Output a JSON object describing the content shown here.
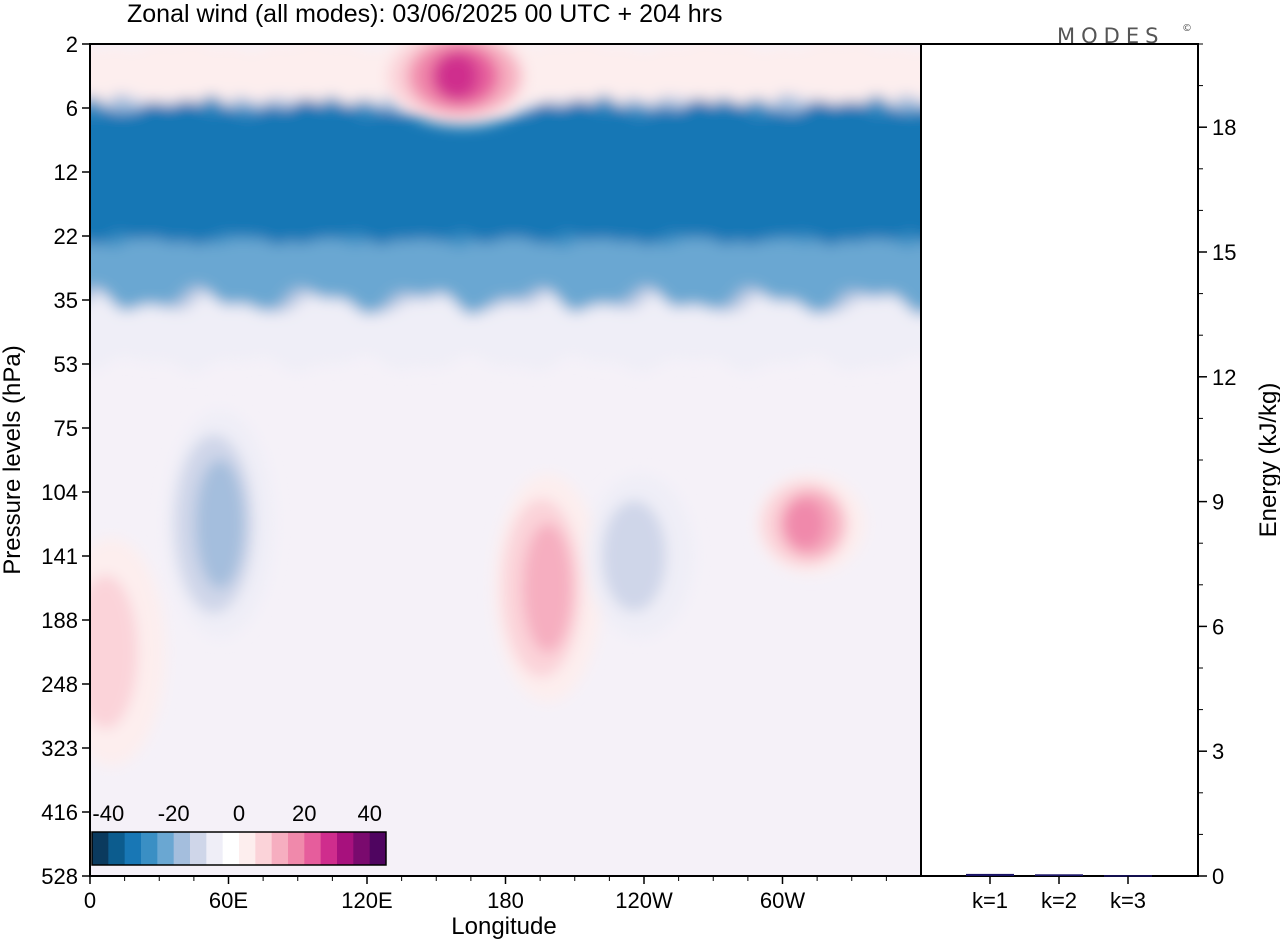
{
  "title": "Zonal wind (all modes):  03/06/2025  00 UTC  + 204 hrs",
  "brand": "MODES",
  "brand_mark": "©",
  "chart_data": [
    {
      "type": "heatmap",
      "title": "Zonal wind (all modes):  03/06/2025  00 UTC  + 204 hrs",
      "xlabel": "Longitude",
      "ylabel": "Pressure levels (hPa)",
      "x_ticks": [
        "0",
        "60E",
        "120E",
        "180",
        "120W",
        "60W"
      ],
      "x_tick_values": [
        0,
        60,
        120,
        180,
        240,
        300
      ],
      "xlim": [
        0,
        360
      ],
      "y_ticks": [
        "2",
        "6",
        "12",
        "22",
        "35",
        "53",
        "75",
        "104",
        "141",
        "188",
        "248",
        "323",
        "416",
        "528"
      ],
      "y_scale": "categorical pressure levels, top to bottom",
      "colorbar": {
        "tick_labels": [
          "-40",
          "-20",
          "0",
          "20",
          "40"
        ],
        "tick_values": [
          -40,
          -20,
          0,
          20,
          40
        ],
        "step": 5,
        "colors": [
          "#0b3a5e",
          "#0c5c8e",
          "#1877b5",
          "#3a8fc4",
          "#6aa7d2",
          "#a4bedd",
          "#cfd6e9",
          "#efeef7",
          "#ffffff",
          "#fdeeee",
          "#fbd3d9",
          "#f6aec0",
          "#f089ab",
          "#e65d9c",
          "#cf2d8d",
          "#a7117d",
          "#7a0a6e",
          "#4f0560"
        ],
        "location": "bottom-left inside plot"
      },
      "features": [
        {
          "level_band": "6-35",
          "sign": "negative",
          "peak": -35,
          "note": "strong easterly band across all longitudes"
        },
        {
          "level_band": "2-6",
          "lon": 160,
          "sign": "positive",
          "peak": 30
        },
        {
          "level_band": "75-188",
          "lon": 55,
          "sign": "negative",
          "peak": -15
        },
        {
          "level_band": "104-248",
          "lon": 197,
          "sign": "positive",
          "peak": 15
        },
        {
          "level_band": "104-188",
          "lon": 237,
          "sign": "negative",
          "peak": -10
        },
        {
          "level_band": "104-141",
          "lon": 311,
          "sign": "positive",
          "peak": 20
        },
        {
          "level_band": "141-323",
          "lon": 8,
          "sign": "positive",
          "peak": 12
        }
      ]
    },
    {
      "type": "bar",
      "categories": [
        "k=1",
        "k=2",
        "k=3"
      ],
      "values": [
        0.05,
        0.04,
        0.02
      ],
      "ylabel": "Energy (kJ/kg)",
      "ylim": [
        0,
        20
      ],
      "y_ticks": [
        "0",
        "3",
        "6",
        "9",
        "12",
        "15",
        "18"
      ],
      "y_tick_values": [
        0,
        3,
        6,
        9,
        12,
        15,
        18
      ],
      "bar_color": "#1a1466"
    }
  ],
  "colors": {
    "bar": "#1a1466",
    "background": "#ffffff",
    "frame": "#000000"
  }
}
